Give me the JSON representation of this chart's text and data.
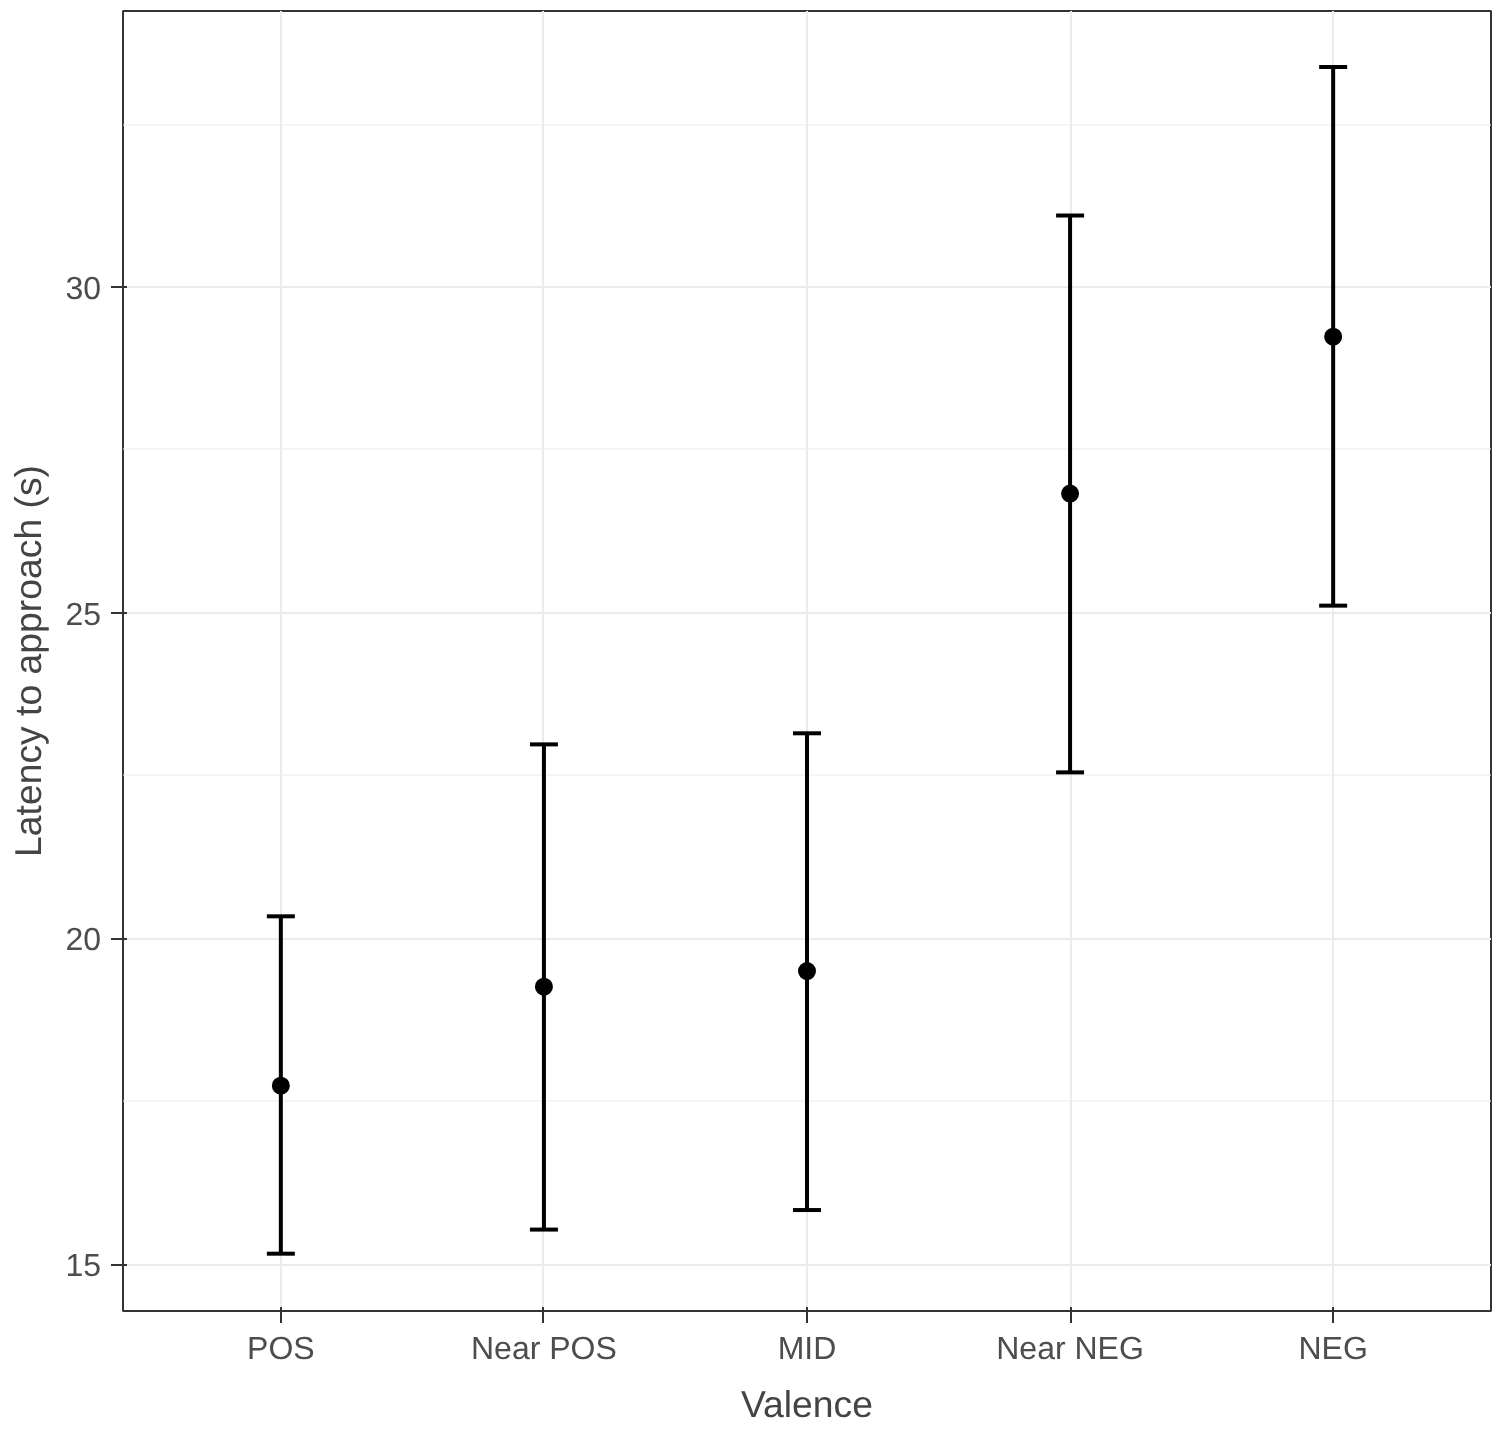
{
  "chart_data": {
    "type": "scatter",
    "xlabel": "Valence",
    "ylabel": "Latency to approach (s)",
    "categories": [
      "POS",
      "Near POS",
      "MID",
      "Near NEG",
      "NEG"
    ],
    "series": [
      {
        "color": "#000000",
        "values": [
          17.74,
          19.26,
          19.5,
          26.83,
          29.24
        ],
        "errors": [
          [
            15.16,
            20.34
          ],
          [
            15.53,
            22.98
          ],
          [
            15.83,
            23.15
          ],
          [
            22.55,
            31.1
          ],
          [
            25.11,
            33.38
          ]
        ]
      }
    ],
    "ylim": [
      14.28,
      34.24
    ],
    "yticks": [
      15,
      20,
      25,
      30
    ],
    "grid": true,
    "marker": "circle"
  }
}
